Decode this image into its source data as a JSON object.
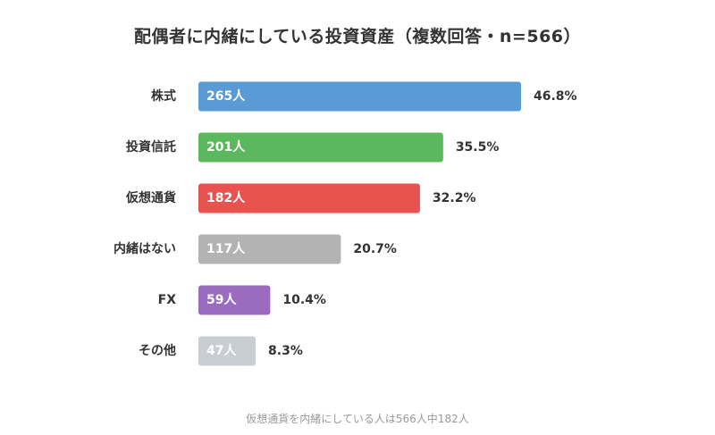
{
  "chart_data": {
    "type": "bar",
    "orientation": "horizontal",
    "title": "配偶者に内緒にしている投資資産（複数回答・n=566）",
    "categories": [
      "株式",
      "投資信託",
      "仮想通貨",
      "内緒はない",
      "FX",
      "その他"
    ],
    "counts": [
      265,
      201,
      182,
      117,
      59,
      47
    ],
    "count_labels": [
      "265人",
      "201人",
      "182人",
      "117人",
      "59人",
      "47人"
    ],
    "percent_labels": [
      "46.8%",
      "35.5%",
      "32.2%",
      "20.7%",
      "10.4%",
      "8.3%"
    ],
    "colors": [
      "#5b9bd5",
      "#5cb85c",
      "#e8534f",
      "#b3b3b3",
      "#9b6bbf",
      "#c9cdd4"
    ],
    "xlim": [
      0,
      265
    ],
    "grid": false,
    "legend": "none"
  },
  "footnote": "仮想通貨を内緒にしている人は566人中182人"
}
